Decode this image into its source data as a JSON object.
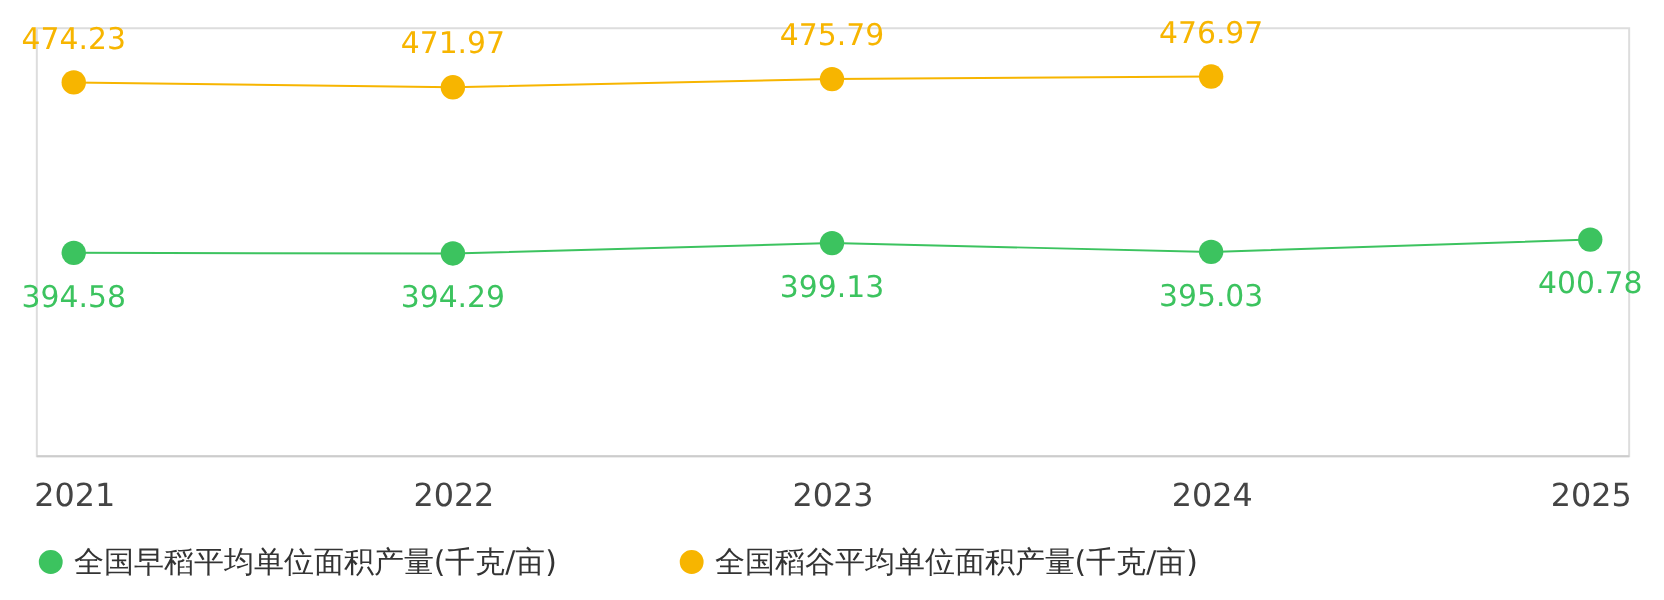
{
  "chart_data": {
    "type": "line",
    "categories": [
      "2021",
      "2022",
      "2023",
      "2024",
      "2025"
    ],
    "series": [
      {
        "name": "全国早稻平均单位面积产量(千克/亩)",
        "color": "#3cc35f",
        "values": [
          394.58,
          394.29,
          399.13,
          395.03,
          400.78
        ]
      },
      {
        "name": "全国稻谷平均单位面积产量(千克/亩)",
        "color": "#f7b500",
        "values": [
          474.23,
          471.97,
          475.79,
          476.97,
          null
        ]
      }
    ],
    "ylim": [
      300,
      500
    ],
    "tick_labels": "x",
    "data_labels": true,
    "legend": "bottom",
    "marker": "circle",
    "grid": false
  }
}
